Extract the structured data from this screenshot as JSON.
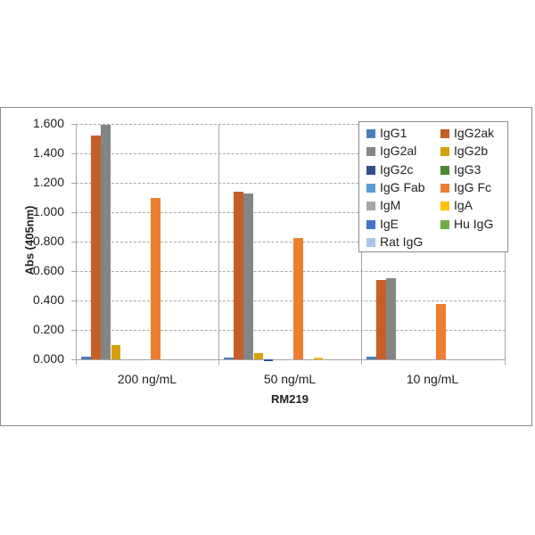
{
  "chart_data": {
    "type": "bar",
    "title": "",
    "xlabel": "RM219",
    "ylabel": "Abs (405nm)",
    "ylim": [
      0,
      1.6
    ],
    "yticks": [
      "0.000",
      "0.200",
      "0.400",
      "0.600",
      "0.800",
      "1.000",
      "1.200",
      "1.400",
      "1.600"
    ],
    "grid": true,
    "legend_position": "upper right, inside",
    "categories": [
      "200 ng/mL",
      "50 ng/mL",
      "10 ng/mL"
    ],
    "series": [
      {
        "name": "IgG1",
        "color": "#4a7ebb",
        "values": [
          0.02,
          0.01,
          0.02
        ]
      },
      {
        "name": "IgG2ak",
        "color": "#c65f27",
        "values": [
          1.52,
          1.14,
          0.54
        ]
      },
      {
        "name": "IgG2al",
        "color": "#858585",
        "values": [
          1.595,
          1.13,
          0.55
        ]
      },
      {
        "name": "IgG2b",
        "color": "#d4a00c",
        "values": [
          0.095,
          0.04,
          0.0
        ]
      },
      {
        "name": "IgG2c",
        "color": "#2f4e8c",
        "values": [
          0.0,
          -0.005,
          0.0
        ]
      },
      {
        "name": "IgG3",
        "color": "#4b8a32",
        "values": [
          0.0,
          0.0,
          0.0
        ]
      },
      {
        "name": "IgG Fab",
        "color": "#5b9bd5",
        "values": [
          0.0,
          0.0,
          0.0
        ]
      },
      {
        "name": "IgG Fc",
        "color": "#ed7d31",
        "values": [
          1.1,
          0.825,
          0.375
        ]
      },
      {
        "name": "IgM",
        "color": "#a5a5a5",
        "values": [
          0.0,
          0.0,
          0.0
        ]
      },
      {
        "name": "IgA",
        "color": "#ffc000",
        "values": [
          0.0,
          0.005,
          0.0
        ]
      },
      {
        "name": "IgE",
        "color": "#4472c4",
        "values": [
          0.0,
          0.0,
          0.0
        ]
      },
      {
        "name": "Hu IgG",
        "color": "#70ad47",
        "values": [
          0.0,
          0.0,
          0.0
        ]
      },
      {
        "name": "Rat IgG",
        "color": "#a9c4e8",
        "values": [
          0.0,
          0.0,
          0.0
        ]
      }
    ]
  }
}
